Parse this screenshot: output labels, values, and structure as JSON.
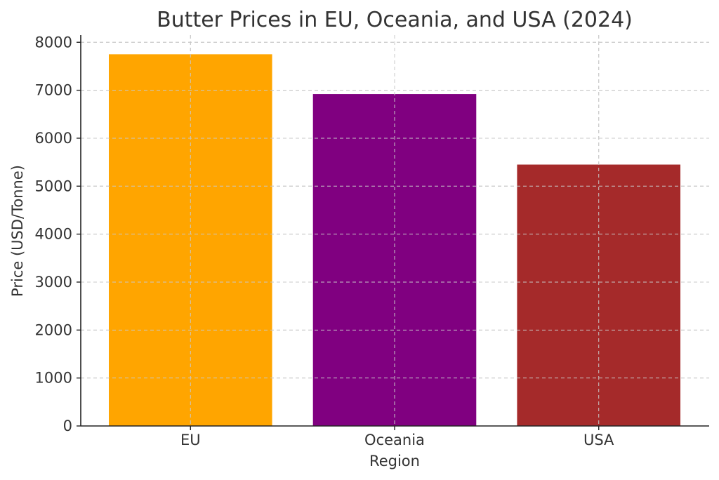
{
  "chart_data": {
    "type": "bar",
    "title": "Butter Prices in EU, Oceania, and USA (2024)",
    "xlabel": "Region",
    "ylabel": "Price (USD/Tonne)",
    "categories": [
      "EU",
      "Oceania",
      "USA"
    ],
    "values": [
      7750,
      6920,
      5450
    ],
    "colors": [
      "#FFA500",
      "#800080",
      "#A52A2A"
    ],
    "ylim": [
      0,
      8150
    ],
    "yticks": [
      0,
      1000,
      2000,
      3000,
      4000,
      5000,
      6000,
      7000,
      8000
    ],
    "grid": true
  }
}
